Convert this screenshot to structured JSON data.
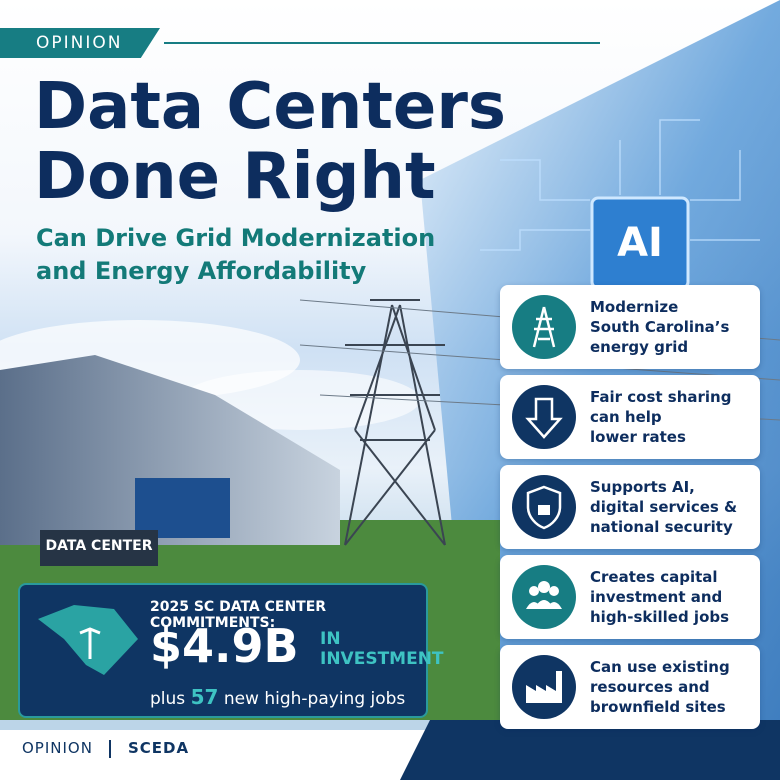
{
  "header": {
    "tag": "OPINION",
    "title": [
      "Data Centers",
      "Done Right"
    ],
    "subtitle": [
      "Can Drive Grid Modernization",
      "and Energy Affordability"
    ]
  },
  "chip": "AI",
  "sign": "DATA CENTER",
  "cards": [
    {
      "lines": [
        "Modernize",
        "South Carolina’s",
        "energy grid"
      ]
    },
    {
      "lines": [
        "Fair cost sharing",
        "can help",
        "lower rates"
      ]
    },
    {
      "lines": [
        "Supports AI,",
        "digital services &",
        "national security"
      ]
    },
    {
      "lines": [
        "Creates capital",
        "investment and",
        "high-skilled jobs"
      ]
    },
    {
      "lines": [
        "Can use existing",
        "resources and",
        "brownfield sites"
      ]
    }
  ],
  "stats": {
    "heading": "2025 SC DATA CENTER COMMITMENTS:",
    "amount": "$4.9B",
    "amount_note": [
      "IN",
      "INVESTMENT"
    ],
    "jobs_prefix": "plus",
    "jobs_number": "57",
    "jobs_suffix": "new high-paying jobs"
  },
  "footer": {
    "left": "OPINION",
    "right": "SCEDA"
  }
}
